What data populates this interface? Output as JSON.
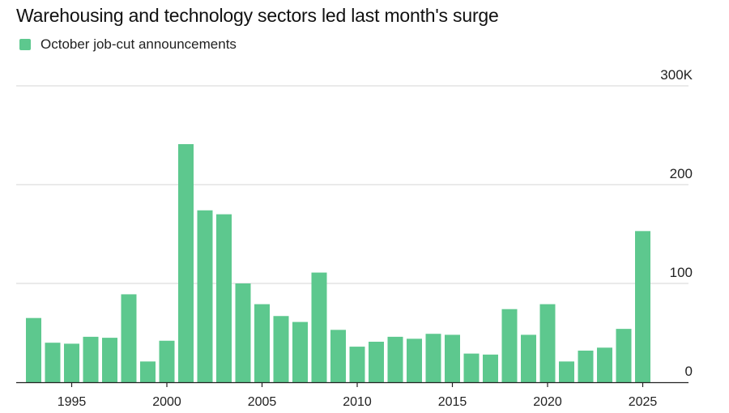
{
  "chart_data": {
    "type": "bar",
    "title": "Warehousing and technology sectors led last month's surge",
    "legend": [
      {
        "label": "October job-cut announcements",
        "color": "#5dc88e"
      }
    ],
    "series": [
      {
        "name": "October job-cut announcements",
        "x": [
          1993,
          1994,
          1995,
          1996,
          1997,
          1998,
          1999,
          2000,
          2001,
          2002,
          2003,
          2004,
          2005,
          2006,
          2007,
          2008,
          2009,
          2010,
          2011,
          2012,
          2013,
          2014,
          2015,
          2016,
          2017,
          2018,
          2019,
          2020,
          2021,
          2022,
          2023,
          2024,
          2025
        ],
        "values": [
          65,
          40,
          39,
          46,
          45,
          89,
          21,
          42,
          241,
          174,
          170,
          100,
          79,
          67,
          61,
          111,
          53,
          36,
          41,
          46,
          44,
          49,
          48,
          29,
          28,
          74,
          48,
          79,
          21,
          32,
          35,
          54,
          153
        ]
      }
    ],
    "x_tick_labels": [
      "1995",
      "2000",
      "2005",
      "2010",
      "2015",
      "2020",
      "2025"
    ],
    "y_ticks": [
      {
        "value": 0,
        "label": "0"
      },
      {
        "value": 100,
        "label": "100"
      },
      {
        "value": 200,
        "label": "200"
      },
      {
        "value": 300,
        "label": "300K"
      }
    ],
    "ylim": [
      0,
      300
    ],
    "xlabel": "",
    "ylabel": "",
    "grid": true,
    "colors": {
      "bar": "#5dc88e",
      "grid": "#d4d4d4",
      "axis": "#222222"
    }
  }
}
